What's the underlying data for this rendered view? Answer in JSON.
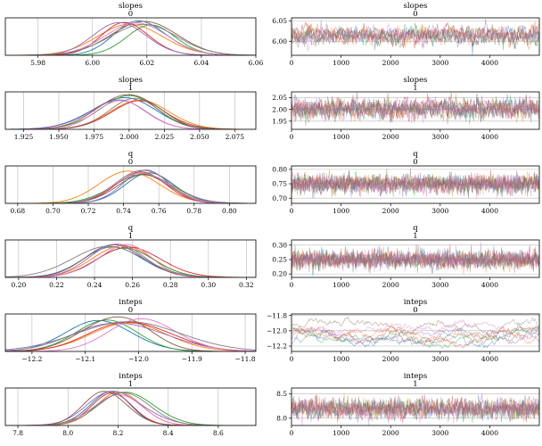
{
  "series_colors": [
    "#1f77b4",
    "#ff7f0e",
    "#2ca02c",
    "#d62728",
    "#9467bd",
    "#8c564b",
    "#e377c2",
    "#7f7f7f",
    "#bcbd22",
    "#17becf"
  ],
  "chart_data": [
    {
      "type": "line",
      "kind": "density",
      "title": "slopes",
      "subtitle": "0",
      "xlim": [
        5.968,
        6.06
      ],
      "xticks": [
        5.98,
        6.0,
        6.02,
        6.04,
        6.06
      ],
      "xtick_labels": [
        "5.98",
        "6.00",
        "6.02",
        "6.04",
        "6.06"
      ],
      "mean": 6.015,
      "sd": 0.011,
      "curve_means": [
        6.014,
        6.016,
        6.018,
        6.012,
        6.01,
        6.019,
        6.015,
        6.017
      ],
      "curve_sds": [
        0.01,
        0.012,
        0.011,
        0.009,
        0.01,
        0.012,
        0.011,
        0.013
      ]
    },
    {
      "type": "line",
      "kind": "trace",
      "title": "slopes",
      "subtitle": "0",
      "xlim": [
        0,
        4999
      ],
      "ylim": [
        5.965,
        6.058
      ],
      "xticks": [
        0,
        1000,
        2000,
        3000,
        4000
      ],
      "xtick_labels": [
        "0",
        "1000",
        "2000",
        "3000",
        "4000"
      ],
      "yticks": [
        6.0,
        6.05
      ],
      "ytick_labels": [
        "6.00",
        "6.05"
      ],
      "mean": 6.015,
      "sd": 0.011,
      "autocorr": 0.6
    },
    {
      "type": "line",
      "kind": "density",
      "title": "slopes",
      "subtitle": "1",
      "xlim": [
        1.912,
        2.09
      ],
      "xticks": [
        1.925,
        1.95,
        1.975,
        2.0,
        2.025,
        2.05,
        2.075
      ],
      "xtick_labels": [
        "1.925",
        "1.950",
        "1.975",
        "2.000",
        "2.025",
        "2.050",
        "2.075"
      ],
      "mean": 2.003,
      "sd": 0.021,
      "curve_means": [
        2.003,
        2.005,
        2.001,
        2.004,
        2.0,
        2.006,
        2.002,
        2.003
      ],
      "curve_sds": [
        0.02,
        0.021,
        0.022,
        0.019,
        0.02,
        0.023,
        0.021,
        0.02
      ]
    },
    {
      "type": "line",
      "kind": "trace",
      "title": "slopes",
      "subtitle": "1",
      "xlim": [
        0,
        4999
      ],
      "ylim": [
        1.915,
        2.075
      ],
      "xticks": [
        0,
        1000,
        2000,
        3000,
        4000
      ],
      "xtick_labels": [
        "0",
        "1000",
        "2000",
        "3000",
        "4000"
      ],
      "yticks": [
        1.95,
        2.0,
        2.05
      ],
      "ytick_labels": [
        "1.95",
        "2.00",
        "2.05"
      ],
      "mean": 2.003,
      "sd": 0.021,
      "autocorr": 0.4
    },
    {
      "type": "line",
      "kind": "density",
      "title": "q",
      "subtitle": "0",
      "xlim": [
        0.673,
        0.815
      ],
      "xticks": [
        0.68,
        0.7,
        0.72,
        0.74,
        0.76,
        0.78,
        0.8
      ],
      "xtick_labels": [
        "0.68",
        "0.70",
        "0.72",
        "0.74",
        "0.76",
        "0.78",
        "0.80"
      ],
      "mean": 0.75,
      "sd": 0.016,
      "curve_means": [
        0.75,
        0.751,
        0.749,
        0.75,
        0.751,
        0.749,
        0.75,
        0.75
      ],
      "curve_sds": [
        0.015,
        0.016,
        0.017,
        0.016,
        0.015,
        0.016,
        0.016,
        0.017
      ]
    },
    {
      "type": "line",
      "kind": "trace",
      "title": "q",
      "subtitle": "0",
      "xlim": [
        0,
        4999
      ],
      "ylim": [
        0.682,
        0.812
      ],
      "xticks": [
        0,
        1000,
        2000,
        3000,
        4000
      ],
      "xtick_labels": [
        "0",
        "1000",
        "2000",
        "3000",
        "4000"
      ],
      "yticks": [
        0.7,
        0.75,
        0.8
      ],
      "ytick_labels": [
        "0.70",
        "0.75",
        "0.80"
      ],
      "mean": 0.75,
      "sd": 0.016,
      "autocorr": 0.05
    },
    {
      "type": "line",
      "kind": "density",
      "title": "q",
      "subtitle": "1",
      "xlim": [
        0.193,
        0.325
      ],
      "xticks": [
        0.2,
        0.22,
        0.24,
        0.26,
        0.28,
        0.3,
        0.32
      ],
      "xtick_labels": [
        "0.20",
        "0.22",
        "0.24",
        "0.26",
        "0.28",
        "0.30",
        "0.32"
      ],
      "mean": 0.25,
      "sd": 0.016,
      "curve_means": [
        0.25,
        0.251,
        0.249,
        0.25,
        0.251,
        0.249,
        0.25,
        0.25
      ],
      "curve_sds": [
        0.015,
        0.016,
        0.017,
        0.016,
        0.015,
        0.016,
        0.016,
        0.017
      ]
    },
    {
      "type": "line",
      "kind": "trace",
      "title": "q",
      "subtitle": "1",
      "xlim": [
        0,
        4999
      ],
      "ylim": [
        0.188,
        0.318
      ],
      "xticks": [
        0,
        1000,
        2000,
        3000,
        4000
      ],
      "xtick_labels": [
        "0",
        "1000",
        "2000",
        "3000",
        "4000"
      ],
      "yticks": [
        0.2,
        0.25,
        0.3
      ],
      "ytick_labels": [
        "0.20",
        "0.25",
        "0.30"
      ],
      "mean": 0.25,
      "sd": 0.016,
      "autocorr": 0.05
    },
    {
      "type": "line",
      "kind": "density",
      "title": "inteps",
      "subtitle": "0",
      "xlim": [
        -12.25,
        -11.78
      ],
      "xticks": [
        -12.2,
        -12.1,
        -12.0,
        -11.9,
        -11.8
      ],
      "xtick_labels": [
        "−12.2",
        "−12.1",
        "−12.0",
        "−11.9",
        "−11.8"
      ],
      "mean": -12.03,
      "sd": 0.075,
      "curve_means": [
        -12.04,
        -12.02,
        -12.06,
        -12.0,
        -12.03,
        -12.05,
        -11.99,
        -12.03
      ],
      "curve_sds": [
        0.07,
        0.08,
        0.065,
        0.075,
        0.085,
        0.06,
        0.07,
        0.09
      ]
    },
    {
      "type": "line",
      "kind": "trace",
      "title": "inteps",
      "subtitle": "0",
      "xlim": [
        0,
        4999
      ],
      "ylim": [
        -12.27,
        -11.78
      ],
      "xticks": [
        0,
        1000,
        2000,
        3000,
        4000
      ],
      "xtick_labels": [
        "0",
        "1000",
        "2000",
        "3000",
        "4000"
      ],
      "yticks": [
        -12.2,
        -12.0,
        -11.8
      ],
      "ytick_labels": [
        "−12.2",
        "−12.0",
        "−11.8"
      ],
      "mean": -12.03,
      "sd": 0.075,
      "autocorr": 0.985
    },
    {
      "type": "line",
      "kind": "density",
      "title": "inteps",
      "subtitle": "1",
      "xlim": [
        7.75,
        8.75
      ],
      "xticks": [
        7.8,
        8.0,
        8.2,
        8.4,
        8.6
      ],
      "xtick_labels": [
        "7.8",
        "8.0",
        "8.2",
        "8.4",
        "8.6"
      ],
      "mean": 8.2,
      "sd": 0.1,
      "curve_means": [
        8.18,
        8.21,
        8.2,
        8.19,
        8.22,
        8.17,
        8.2,
        8.21
      ],
      "curve_sds": [
        0.09,
        0.1,
        0.11,
        0.095,
        0.105,
        0.09,
        0.1,
        0.115
      ]
    },
    {
      "type": "line",
      "kind": "trace",
      "title": "inteps",
      "subtitle": "1",
      "xlim": [
        0,
        4999
      ],
      "ylim": [
        7.85,
        8.62
      ],
      "xticks": [
        0,
        1000,
        2000,
        3000,
        4000
      ],
      "xtick_labels": [
        "0",
        "1000",
        "2000",
        "3000",
        "4000"
      ],
      "yticks": [
        8.0,
        8.5
      ],
      "ytick_labels": [
        "8.0",
        "8.5"
      ],
      "mean": 8.2,
      "sd": 0.1,
      "autocorr": 0.3
    }
  ]
}
